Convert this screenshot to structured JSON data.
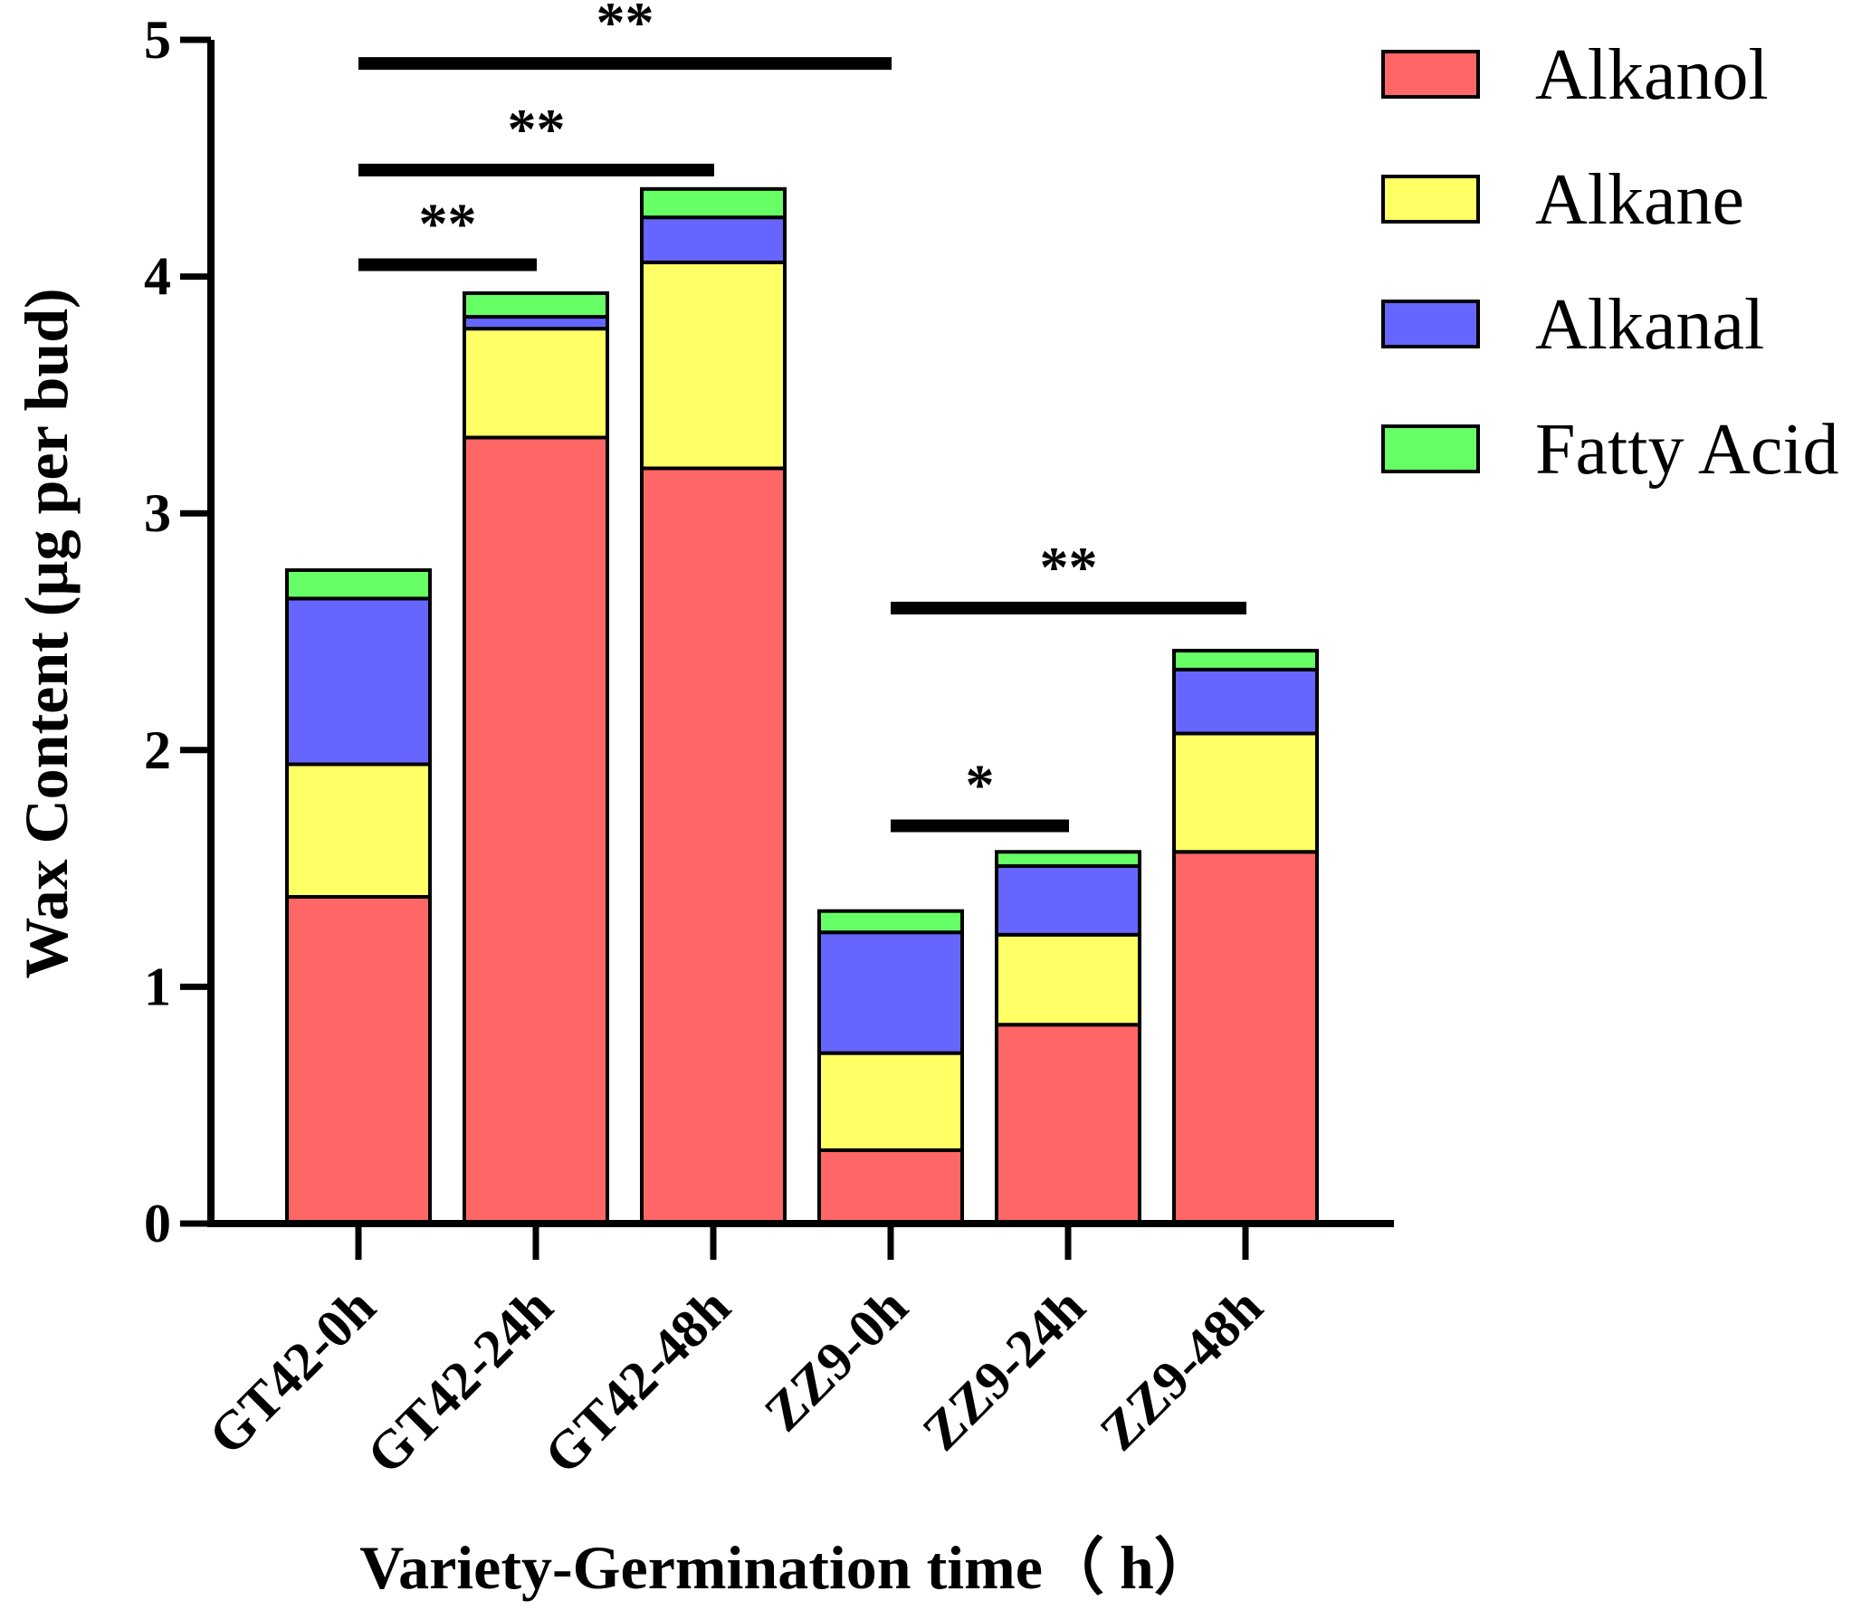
{
  "chart_data": {
    "type": "bar",
    "stacked": true,
    "xlabel": "Variety-Germination time（ h）",
    "ylabel": "Wax Content (µg per bud)",
    "ylim": [
      0,
      5
    ],
    "yticks": [
      "0",
      "1",
      "2",
      "3",
      "4",
      "5"
    ],
    "categories": [
      "GT42-0h",
      "GT42-24h",
      "GT42-48h",
      "ZZ9-0h",
      "ZZ9-24h",
      "ZZ9-48h"
    ],
    "series": [
      {
        "name": "Alkanol",
        "color": "#ff6666",
        "values": [
          1.38,
          3.32,
          3.19,
          0.31,
          0.84,
          1.57
        ]
      },
      {
        "name": "Alkane",
        "color": "#ffff66",
        "values": [
          0.56,
          0.46,
          0.87,
          0.41,
          0.38,
          0.5
        ]
      },
      {
        "name": "Alkanal",
        "color": "#6666ff",
        "values": [
          0.7,
          0.05,
          0.19,
          0.51,
          0.29,
          0.27
        ]
      },
      {
        "name": "Fatty Acid",
        "color": "#66ff66",
        "values": [
          0.12,
          0.1,
          0.12,
          0.09,
          0.06,
          0.08
        ]
      }
    ],
    "significance": [
      {
        "label": "**",
        "from": 0,
        "to": 1,
        "y": 4.05
      },
      {
        "label": "**",
        "from": 0,
        "to": 2,
        "y": 4.45
      },
      {
        "label": "**",
        "from": 0,
        "to": 3,
        "y": 4.9
      },
      {
        "label": "*",
        "from": 3,
        "to": 4,
        "y": 1.68
      },
      {
        "label": "**",
        "from": 3,
        "to": 5,
        "y": 2.6
      }
    ],
    "legend_position": "top-right",
    "grid": false
  }
}
